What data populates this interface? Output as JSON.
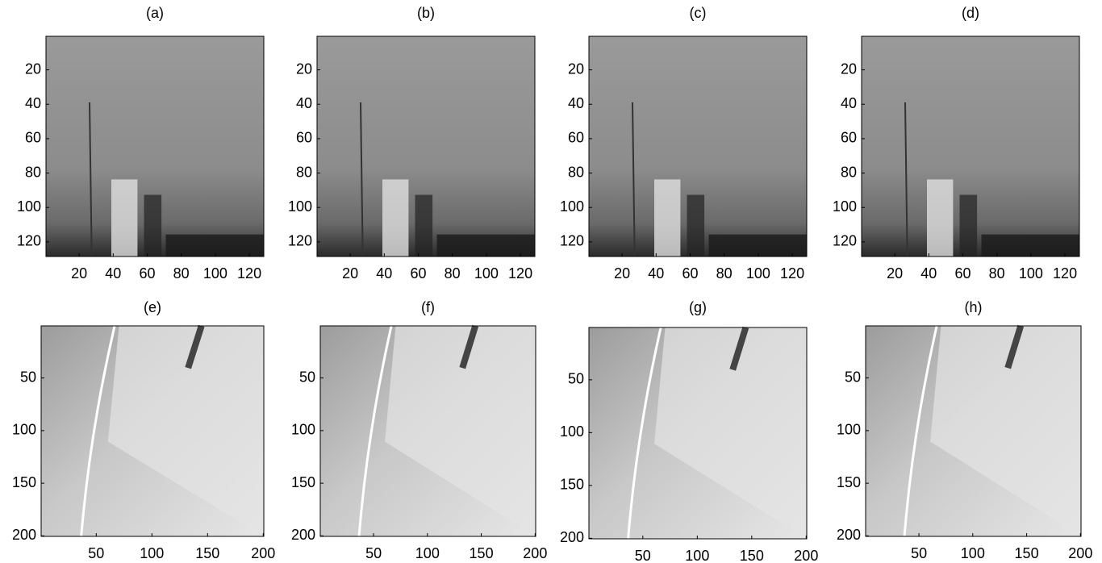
{
  "panels": [
    {
      "title": "(a)",
      "xlim": [
        0.5,
        128.5
      ],
      "ylim": [
        0.5,
        128.5
      ],
      "xticks": [
        20,
        40,
        60,
        80,
        100,
        120
      ],
      "yticks": [
        20,
        40,
        60,
        80,
        100,
        120
      ]
    },
    {
      "title": "(b)",
      "xlim": [
        0.5,
        128.5
      ],
      "ylim": [
        0.5,
        128.5
      ],
      "xticks": [
        20,
        40,
        60,
        80,
        100,
        120
      ],
      "yticks": [
        20,
        40,
        60,
        80,
        100,
        120
      ]
    },
    {
      "title": "(c)",
      "xlim": [
        0.5,
        128.5
      ],
      "ylim": [
        0.5,
        128.5
      ],
      "xticks": [
        20,
        40,
        60,
        80,
        100,
        120
      ],
      "yticks": [
        20,
        40,
        60,
        80,
        100,
        120
      ]
    },
    {
      "title": "(d)",
      "xlim": [
        0.5,
        128.5
      ],
      "ylim": [
        0.5,
        128.5
      ],
      "xticks": [
        20,
        40,
        60,
        80,
        100,
        120
      ],
      "yticks": [
        20,
        40,
        60,
        80,
        100,
        120
      ]
    },
    {
      "title": "(e)",
      "xlim": [
        0.5,
        200.5
      ],
      "ylim": [
        0.5,
        200.5
      ],
      "xticks": [
        50,
        100,
        150,
        200
      ],
      "yticks": [
        50,
        100,
        150,
        200
      ]
    },
    {
      "title": "(f)",
      "xlim": [
        0.5,
        200.5
      ],
      "ylim": [
        0.5,
        200.5
      ],
      "xticks": [
        50,
        100,
        150,
        200
      ],
      "yticks": [
        50,
        100,
        150,
        200
      ]
    },
    {
      "title": "(g)",
      "xlim": [
        0.5,
        200.5
      ],
      "ylim": [
        0.5,
        200.5
      ],
      "xticks": [
        50,
        100,
        150,
        200
      ],
      "yticks": [
        50,
        100,
        150,
        200
      ]
    },
    {
      "title": "(h)",
      "xlim": [
        0.5,
        200.5
      ],
      "ylim": [
        0.5,
        200.5
      ],
      "xticks": [
        50,
        100,
        150,
        200
      ],
      "yticks": [
        50,
        100,
        150,
        200
      ]
    }
  ]
}
